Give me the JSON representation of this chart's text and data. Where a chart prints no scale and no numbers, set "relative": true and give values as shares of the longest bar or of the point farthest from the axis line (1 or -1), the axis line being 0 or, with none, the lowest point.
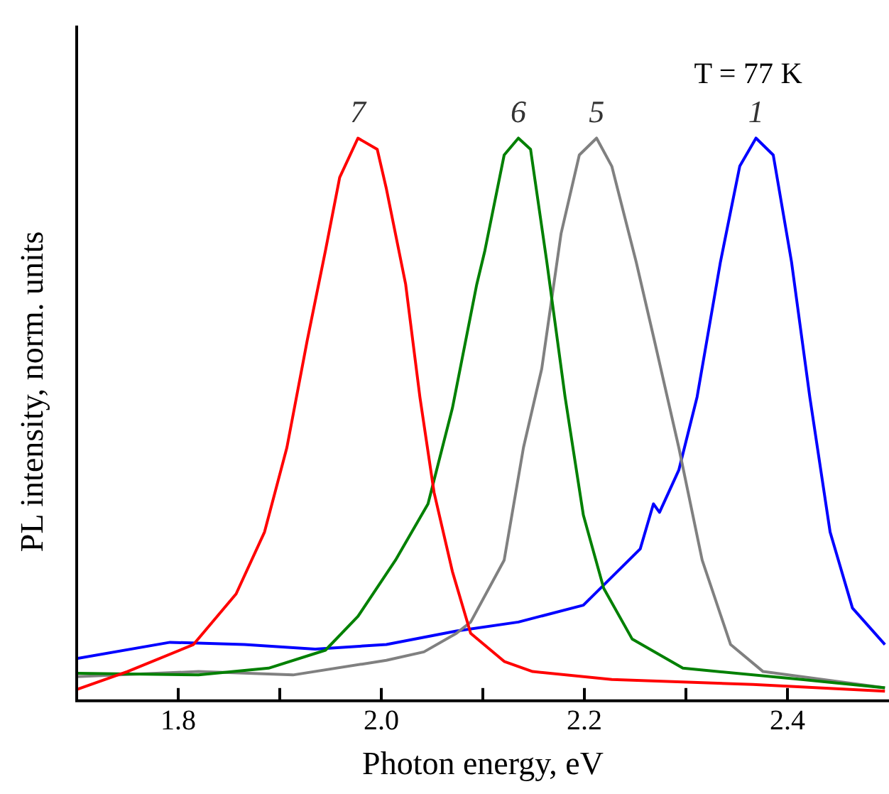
{
  "chart_data": {
    "type": "line",
    "relative": true,
    "xlabel": "Photon energy, eV",
    "ylabel": "PL intensity, norm. units",
    "xlim": [
      1.7,
      2.5
    ],
    "xticks": [
      1.8,
      {
        "value": 1.9,
        "label": null
      },
      {
        "value": 2.0,
        "label": "2.0"
      },
      {
        "value": 2.1,
        "label": null
      },
      2.2,
      {
        "value": 2.3,
        "label": null
      },
      2.4
    ],
    "marker": "none",
    "line_style": "solid",
    "legend": false,
    "annotations": [
      "T = 77 K"
    ],
    "series": [
      {
        "name": "7",
        "color": "#ff0000",
        "x": [
          1.7,
          1.75,
          1.815,
          1.857,
          1.885,
          1.907,
          1.927,
          1.945,
          1.959,
          1.977,
          1.996,
          2.005,
          2.024,
          2.038,
          2.052,
          2.07,
          2.088,
          2.121,
          2.149,
          2.227,
          2.366,
          2.496
        ],
        "values": [
          0.02,
          0.052,
          0.1,
          0.19,
          0.3,
          0.45,
          0.64,
          0.8,
          0.93,
          1.0,
          0.98,
          0.91,
          0.74,
          0.54,
          0.37,
          0.23,
          0.12,
          0.07,
          0.052,
          0.038,
          0.029,
          0.017
        ]
      },
      {
        "name": "6",
        "color": "#008000",
        "x": [
          1.7,
          1.82,
          1.889,
          1.945,
          1.977,
          2.014,
          2.046,
          2.07,
          2.094,
          2.102,
          2.121,
          2.135,
          2.147,
          2.163,
          2.181,
          2.199,
          2.219,
          2.247,
          2.297,
          2.414,
          2.496
        ],
        "values": [
          0.049,
          0.046,
          0.058,
          0.09,
          0.15,
          0.25,
          0.35,
          0.52,
          0.74,
          0.8,
          0.97,
          1.0,
          0.98,
          0.78,
          0.54,
          0.33,
          0.2,
          0.11,
          0.058,
          0.038,
          0.023
        ]
      },
      {
        "name": "5",
        "color": "#808080",
        "x": [
          1.7,
          1.82,
          1.913,
          2.005,
          2.042,
          2.074,
          2.088,
          2.121,
          2.14,
          2.158,
          2.177,
          2.195,
          2.212,
          2.227,
          2.251,
          2.269,
          2.293,
          2.316,
          2.344,
          2.376,
          2.496
        ],
        "values": [
          0.043,
          0.052,
          0.046,
          0.072,
          0.087,
          0.12,
          0.14,
          0.25,
          0.45,
          0.59,
          0.83,
          0.97,
          1.0,
          0.95,
          0.78,
          0.64,
          0.45,
          0.25,
          0.1,
          0.052,
          0.023
        ]
      },
      {
        "name": "1",
        "color": "#0000ff",
        "x": [
          1.7,
          1.792,
          1.865,
          1.935,
          2.005,
          2.074,
          2.135,
          2.199,
          2.255,
          2.268,
          2.274,
          2.293,
          2.311,
          2.334,
          2.353,
          2.369,
          2.386,
          2.404,
          2.422,
          2.442,
          2.464,
          2.496
        ],
        "values": [
          0.075,
          0.104,
          0.1,
          0.092,
          0.1,
          0.124,
          0.14,
          0.17,
          0.27,
          0.35,
          0.335,
          0.41,
          0.54,
          0.78,
          0.95,
          1.0,
          0.97,
          0.78,
          0.54,
          0.3,
          0.165,
          0.1
        ]
      }
    ]
  }
}
